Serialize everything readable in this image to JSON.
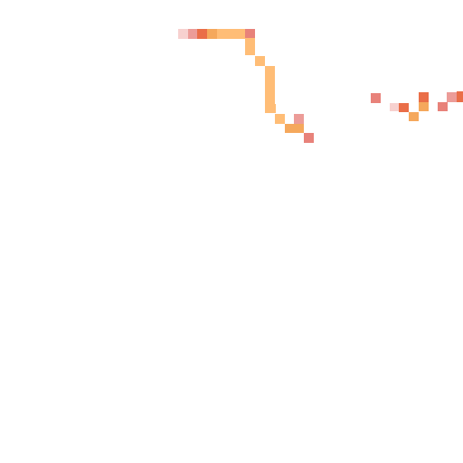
{
  "map": {
    "palette": {
      "pale_pink": "#f7d1cf",
      "pink": "#ec9c98",
      "salmon": "#e8827a",
      "coral": "#ea6e48",
      "orange": "#f5a85c",
      "light_orange": "#ffbd76"
    }
  }
}
